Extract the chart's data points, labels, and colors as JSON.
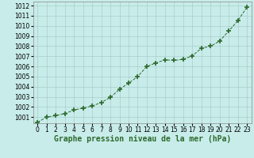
{
  "x": [
    0,
    1,
    2,
    3,
    4,
    5,
    6,
    7,
    8,
    9,
    10,
    11,
    12,
    13,
    14,
    15,
    16,
    17,
    18,
    19,
    20,
    21,
    22,
    23
  ],
  "y": [
    1000.5,
    1001.0,
    1001.15,
    1001.35,
    1001.7,
    1001.9,
    1002.1,
    1002.45,
    1002.95,
    1003.75,
    1004.35,
    1005.0,
    1006.0,
    1006.35,
    1006.65,
    1006.6,
    1006.7,
    1007.05,
    1007.8,
    1008.0,
    1008.5,
    1009.5,
    1010.5,
    1011.85
  ],
  "line_color": "#2d6a2d",
  "marker_color": "#2d6a2d",
  "bg_color": "#c8ecea",
  "grid_major_color": "#a8ceca",
  "grid_minor_color": "#b8deda",
  "xlabel": "Graphe pression niveau de la mer (hPa)",
  "ylim": [
    1000.4,
    1012.4
  ],
  "xlim": [
    -0.5,
    23.5
  ],
  "yticks": [
    1001,
    1002,
    1003,
    1004,
    1005,
    1006,
    1007,
    1008,
    1009,
    1010,
    1011,
    1012
  ],
  "xticks": [
    0,
    1,
    2,
    3,
    4,
    5,
    6,
    7,
    8,
    9,
    10,
    11,
    12,
    13,
    14,
    15,
    16,
    17,
    18,
    19,
    20,
    21,
    22,
    23
  ],
  "xlabel_fontsize": 7,
  "tick_fontsize": 5.5
}
